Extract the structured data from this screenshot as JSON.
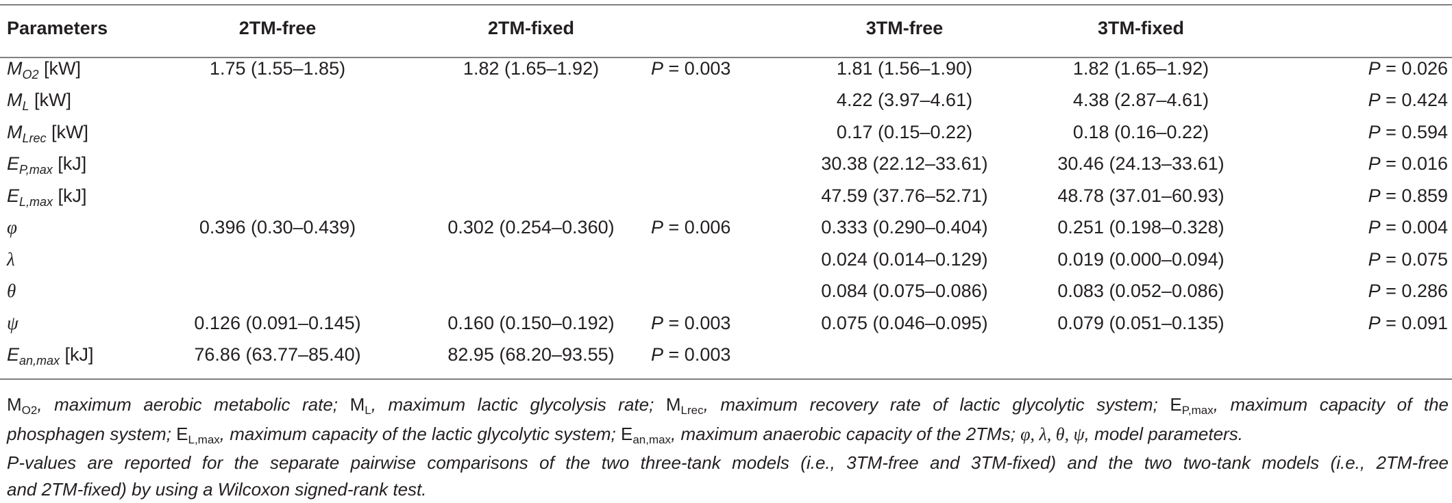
{
  "table": {
    "headers": [
      "Parameters",
      "2TM-free",
      "2TM-fixed",
      "",
      "3TM-free",
      "3TM-fixed",
      ""
    ],
    "rows": [
      {
        "param": {
          "base": "M",
          "sub": "O2",
          "unit": " [kW]"
        },
        "c2tm_free": "1.75 (1.55–1.85)",
        "c2tm_fixed": "1.82 (1.65–1.92)",
        "p2": "= 0.003",
        "c3tm_free": "1.81 (1.56–1.90)",
        "c3tm_fixed": "1.82 (1.65–1.92)",
        "p3": "= 0.026"
      },
      {
        "param": {
          "base": "M",
          "sub": "L",
          "unit": " [kW]"
        },
        "c2tm_free": "",
        "c2tm_fixed": "",
        "p2": "",
        "c3tm_free": "4.22 (3.97–4.61)",
        "c3tm_fixed": "4.38 (2.87–4.61)",
        "p3": "= 0.424"
      },
      {
        "param": {
          "base": "M",
          "sub": "Lrec",
          "unit": " [kW]"
        },
        "c2tm_free": "",
        "c2tm_fixed": "",
        "p2": "",
        "c3tm_free": "0.17 (0.15–0.22)",
        "c3tm_fixed": "0.18 (0.16–0.22)",
        "p3": "= 0.594"
      },
      {
        "param": {
          "base": "E",
          "sub": "P,max",
          "unit": " [kJ]"
        },
        "c2tm_free": "",
        "c2tm_fixed": "",
        "p2": "",
        "c3tm_free": "30.38 (22.12–33.61)",
        "c3tm_fixed": "30.46 (24.13–33.61)",
        "p3": "= 0.016"
      },
      {
        "param": {
          "base": "E",
          "sub": "L,max",
          "unit": " [kJ]"
        },
        "c2tm_free": "",
        "c2tm_fixed": "",
        "p2": "",
        "c3tm_free": "47.59 (37.76–52.71)",
        "c3tm_fixed": "48.78 (37.01–60.93)",
        "p3": "= 0.859"
      },
      {
        "param": {
          "base": "φ",
          "sub": "",
          "unit": ""
        },
        "c2tm_free": "0.396 (0.30–0.439)",
        "c2tm_fixed": "0.302 (0.254–0.360)",
        "p2": "= 0.006",
        "c3tm_free": "0.333 (0.290–0.404)",
        "c3tm_fixed": "0.251 (0.198–0.328)",
        "p3": "= 0.004"
      },
      {
        "param": {
          "base": "λ",
          "sub": "",
          "unit": ""
        },
        "c2tm_free": "",
        "c2tm_fixed": "",
        "p2": "",
        "c3tm_free": "0.024 (0.014–0.129)",
        "c3tm_fixed": "0.019 (0.000–0.094)",
        "p3": "= 0.075"
      },
      {
        "param": {
          "base": "θ",
          "sub": "",
          "unit": ""
        },
        "c2tm_free": "",
        "c2tm_fixed": "",
        "p2": "",
        "c3tm_free": "0.084 (0.075–0.086)",
        "c3tm_fixed": "0.083 (0.052–0.086)",
        "p3": "= 0.286"
      },
      {
        "param": {
          "base": "ψ",
          "sub": "",
          "unit": ""
        },
        "c2tm_free": "0.126 (0.091–0.145)",
        "c2tm_fixed": "0.160 (0.150–0.192)",
        "p2": "= 0.003",
        "c3tm_free": "0.075 (0.046–0.095)",
        "c3tm_fixed": "0.079 (0.051–0.135)",
        "p3": "= 0.091"
      },
      {
        "param": {
          "base": "E",
          "sub": "an,max",
          "unit": " [kJ]"
        },
        "c2tm_free": "76.86 (63.77–85.40)",
        "c2tm_fixed": "82.95 (68.20–93.55)",
        "p2": "= 0.003",
        "c3tm_free": "",
        "c3tm_fixed": "",
        "p3": ""
      }
    ]
  },
  "footnote": {
    "lines": [
      [
        {
          "t": "M",
          "s": "up"
        },
        {
          "t": "O2",
          "s": "sub"
        },
        {
          "t": ", maximum aerobic metabolic rate; ",
          "s": "it"
        },
        {
          "t": "M",
          "s": "up"
        },
        {
          "t": "L",
          "s": "sub"
        },
        {
          "t": ", maximum lactic glycolysis rate; ",
          "s": "it"
        },
        {
          "t": "M",
          "s": "up"
        },
        {
          "t": "Lrec",
          "s": "sub"
        },
        {
          "t": ", maximum recovery rate of lactic glycolytic system; ",
          "s": "it"
        },
        {
          "t": "E",
          "s": "up"
        },
        {
          "t": "P,max",
          "s": "sub"
        },
        {
          "t": ", maximum capacity of the",
          "s": "it"
        }
      ],
      [
        {
          "t": "phosphagen system; ",
          "s": "it"
        },
        {
          "t": "E",
          "s": "up"
        },
        {
          "t": "L,max",
          "s": "sub"
        },
        {
          "t": ", maximum capacity of the lactic glycolytic system; ",
          "s": "it"
        },
        {
          "t": "E",
          "s": "up"
        },
        {
          "t": "an,max",
          "s": "sub"
        },
        {
          "t": ", maximum anaerobic capacity of the 2TMs; ",
          "s": "it"
        },
        {
          "t": "φ, λ, θ, ψ",
          "s": "greek"
        },
        {
          "t": ", model parameters.",
          "s": "it"
        }
      ],
      [
        {
          "t": "P-values are reported for the separate pairwise comparisons of the two three-tank models (i.e., 3TM-free and 3TM-fixed) and the two two-tank models (i.e., 2TM-free",
          "s": "it"
        }
      ],
      [
        {
          "t": "and 2TM-fixed) by using a Wilcoxon signed-rank test.",
          "s": "it"
        }
      ]
    ]
  }
}
